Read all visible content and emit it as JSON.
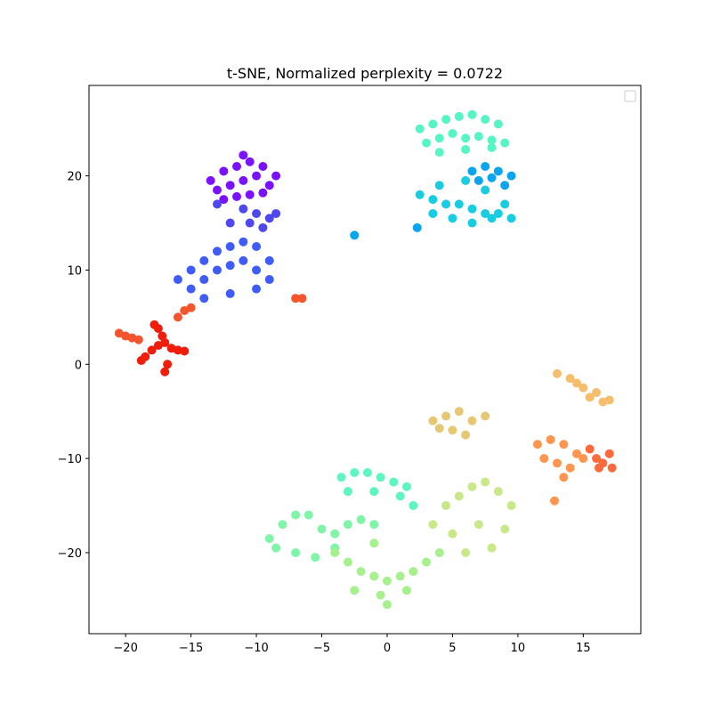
{
  "chart_data": {
    "type": "scatter",
    "title": "t-SNE, Normalized perplexity = 0.0722",
    "xlim": [
      -22.8,
      19.4
    ],
    "ylim": [
      -28.6,
      29.6
    ],
    "xticks": [
      {
        "value": -20,
        "label": "−20"
      },
      {
        "value": -15,
        "label": "−15"
      },
      {
        "value": -10,
        "label": "−10"
      },
      {
        "value": -5,
        "label": "−5"
      },
      0,
      5,
      10,
      15
    ],
    "yticks": [
      {
        "value": -20,
        "label": "−20"
      },
      {
        "value": -10,
        "label": "−10"
      },
      0,
      10,
      20
    ],
    "series": [
      {
        "color": "#7a12ff",
        "x": [
          -13.5,
          -12.5,
          -11.5,
          -10.5,
          -9.5,
          -8.5,
          -13,
          -12,
          -11,
          -10,
          -9,
          -12.5,
          -11.5,
          -10.5,
          -9.5,
          -11
        ],
        "y": [
          19.5,
          20.5,
          21,
          21.5,
          21,
          20,
          18.5,
          19,
          19.5,
          20,
          19,
          17.5,
          17.8,
          18,
          18.2,
          22.2
        ]
      },
      {
        "color": "#3f5cf8",
        "x": [
          -16,
          -15,
          -14,
          -13,
          -12,
          -11,
          -10,
          -9,
          -15,
          -14,
          -13,
          -12,
          -11,
          -10,
          -14,
          -12,
          -10,
          -9
        ],
        "y": [
          9,
          10,
          11,
          12,
          12.5,
          13,
          12.5,
          11,
          8,
          9,
          10,
          10.5,
          11,
          10,
          7,
          7.5,
          8,
          9
        ]
      },
      {
        "color": "#4f48f0",
        "x": [
          -11,
          -10,
          -9,
          -8.5,
          -10.5,
          -9.5,
          -12,
          -13
        ],
        "y": [
          16.5,
          16,
          15.5,
          16,
          15,
          14.5,
          15,
          17
        ]
      },
      {
        "color": "#f01d0a",
        "x": [
          -18,
          -17.5,
          -17,
          -16.5,
          -16,
          -15.5,
          -18.5,
          -18.8,
          -17.2,
          -16.8,
          -17,
          -17.5,
          -17.8
        ],
        "y": [
          1.5,
          2,
          2.3,
          1.7,
          1.5,
          1.4,
          0.8,
          0.4,
          3,
          0,
          -0.8,
          3.8,
          4.2
        ]
      },
      {
        "color": "#f4552c",
        "x": [
          -20.5,
          -20,
          -19.5,
          -19,
          -16,
          -15.5,
          -15,
          -6.5,
          -7
        ],
        "y": [
          3.3,
          3,
          2.8,
          2.6,
          5,
          5.7,
          6,
          7,
          7
        ]
      },
      {
        "color": "#55f5c6",
        "x": [
          2.5,
          3.5,
          4.5,
          5.5,
          6.5,
          7.5,
          8.5,
          3,
          4,
          5,
          6,
          7,
          8,
          9,
          4,
          6,
          8
        ],
        "y": [
          25,
          25.5,
          26,
          26.3,
          26.5,
          26,
          25.5,
          23.5,
          24,
          24.5,
          24,
          24.2,
          23.8,
          23.5,
          22.5,
          22.8,
          23
        ]
      },
      {
        "color": "#18cde2",
        "x": [
          2.5,
          3.5,
          4.5,
          5.5,
          6.5,
          7.5,
          8.5,
          9.5,
          3.5,
          5,
          6.5,
          8,
          9,
          4,
          6,
          7.5
        ],
        "y": [
          18,
          17.5,
          17,
          17,
          16.5,
          16,
          16,
          15.5,
          16,
          15.5,
          15,
          15.5,
          17,
          19,
          19.5,
          18.5
        ]
      },
      {
        "color": "#0aa5ee",
        "x": [
          6.5,
          7.5,
          8.5,
          9.5,
          7,
          8,
          9,
          2.3,
          -2.5
        ],
        "y": [
          20.5,
          21,
          20.5,
          20,
          19.5,
          19.8,
          19,
          14.5,
          13.7
        ]
      },
      {
        "color": "#f6bd6c",
        "x": [
          13,
          14,
          15,
          16,
          17,
          15.5,
          14.5,
          16.5
        ],
        "y": [
          -1,
          -1.5,
          -2.5,
          -3,
          -3.8,
          -3.5,
          -2,
          -4
        ]
      },
      {
        "color": "#ff9650",
        "x": [
          11.5,
          12.5,
          13.5,
          14.5,
          12,
          13,
          14,
          15,
          13.5,
          12.8
        ],
        "y": [
          -8.5,
          -8,
          -8.5,
          -9.5,
          -10,
          -10.5,
          -11,
          -10,
          -12,
          -14.5
        ]
      },
      {
        "color": "#ff6a3c",
        "x": [
          15.5,
          16,
          16.5,
          17,
          17.2,
          16.2
        ],
        "y": [
          -9,
          -10,
          -10.5,
          -9.5,
          -11,
          -11
        ]
      },
      {
        "color": "#e6c874",
        "x": [
          3.5,
          4.5,
          5.5,
          6.5,
          7.5,
          4,
          5,
          6
        ],
        "y": [
          -6,
          -5.5,
          -5,
          -6,
          -5.5,
          -6.8,
          -7,
          -7.5
        ]
      },
      {
        "color": "#5ef6bf",
        "x": [
          -3.5,
          -2.5,
          -1.5,
          -0.5,
          0.5,
          1.5,
          -3,
          -1,
          1,
          2
        ],
        "y": [
          -12,
          -11.5,
          -11.5,
          -12,
          -12.5,
          -13,
          -13.5,
          -13.5,
          -14,
          -15
        ]
      },
      {
        "color": "#80f4a8",
        "x": [
          -9,
          -8,
          -7,
          -6,
          -5,
          -4,
          -8.5,
          -7,
          -5.5,
          -4,
          -3,
          -2,
          -1
        ],
        "y": [
          -18.5,
          -17,
          -16,
          -16,
          -17.5,
          -18,
          -19.5,
          -20,
          -20.5,
          -19.5,
          -17,
          -16.5,
          -17
        ]
      },
      {
        "color": "#a6f08e",
        "x": [
          -4,
          -3,
          -2,
          -1,
          0,
          1,
          2,
          3,
          4,
          -2.5,
          -0.5,
          1.5,
          0,
          -1
        ],
        "y": [
          -20,
          -21,
          -22,
          -22.5,
          -23,
          -22.5,
          -22,
          -21,
          -20,
          -24,
          -24.5,
          -24,
          -25.5,
          -19
        ]
      },
      {
        "color": "#c8e88a",
        "x": [
          4.5,
          5.5,
          6.5,
          7.5,
          8.5,
          9.5,
          5,
          7,
          9,
          6,
          8,
          3.5
        ],
        "y": [
          -15,
          -14,
          -13,
          -12.5,
          -13.5,
          -15,
          -18,
          -17,
          -17.5,
          -20,
          -19.5,
          -17
        ]
      }
    ]
  }
}
